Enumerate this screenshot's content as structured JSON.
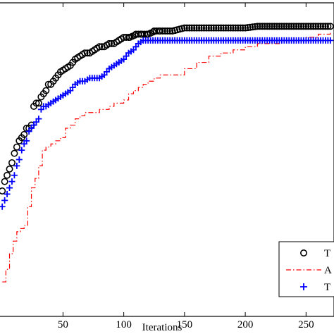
{
  "chart_data": {
    "type": "line",
    "xlabel": "Iterations",
    "ylabel": "",
    "title": "",
    "xlim": [
      -3,
      273
    ],
    "ylim": [
      0,
      1
    ],
    "xticks": [
      50,
      100,
      150,
      200,
      250
    ],
    "xtick_labels": [
      "50",
      "100",
      "150",
      "200",
      "250"
    ],
    "grid": false,
    "legend_position": "bottom-right",
    "legend": [
      {
        "label": "T",
        "marker": "circle",
        "color": "#000000"
      },
      {
        "label": "A",
        "marker": "dash-dot",
        "color": "#ff0000"
      },
      {
        "label": "T",
        "marker": "plus",
        "color": "#0000ff"
      }
    ],
    "series": [
      {
        "color": "#000000",
        "marker": "circle",
        "linestyle": "none",
        "x": [
          0,
          2,
          4,
          6,
          8,
          10,
          12,
          14,
          16,
          18,
          20,
          22,
          24,
          26,
          28,
          30,
          32,
          34,
          36,
          38,
          40,
          44,
          48,
          52,
          56,
          60,
          64,
          68,
          72,
          76,
          80,
          84,
          88,
          92,
          96,
          100,
          105,
          110,
          115,
          120,
          125,
          130,
          140,
          150,
          160,
          170,
          180,
          190,
          200,
          210,
          220,
          230,
          240,
          250,
          260,
          270
        ],
        "y": [
          0.4,
          0.43,
          0.45,
          0.47,
          0.49,
          0.52,
          0.54,
          0.56,
          0.57,
          0.58,
          0.6,
          0.6,
          0.61,
          0.67,
          0.68,
          0.68,
          0.7,
          0.71,
          0.72,
          0.74,
          0.74,
          0.76,
          0.78,
          0.79,
          0.8,
          0.82,
          0.83,
          0.84,
          0.84,
          0.85,
          0.86,
          0.86,
          0.87,
          0.87,
          0.88,
          0.89,
          0.89,
          0.9,
          0.9,
          0.9,
          0.91,
          0.91,
          0.91,
          0.92,
          0.92,
          0.92,
          0.92,
          0.92,
          0.92,
          0.925,
          0.925,
          0.925,
          0.925,
          0.925,
          0.925,
          0.925
        ]
      },
      {
        "color": "#ff0000",
        "marker": "dash-dot",
        "linestyle": "dashdot",
        "x": [
          0,
          3,
          6,
          9,
          12,
          15,
          18,
          21,
          24,
          27,
          30,
          33,
          36,
          40,
          44,
          48,
          52,
          56,
          60,
          64,
          68,
          72,
          76,
          80,
          84,
          88,
          92,
          96,
          100,
          104,
          108,
          112,
          116,
          120,
          125,
          130,
          140,
          150,
          160,
          170,
          180,
          190,
          200,
          210,
          220,
          230,
          240,
          250,
          260,
          270
        ],
        "y": [
          0.11,
          0.15,
          0.2,
          0.24,
          0.27,
          0.28,
          0.29,
          0.35,
          0.41,
          0.44,
          0.48,
          0.53,
          0.54,
          0.55,
          0.56,
          0.57,
          0.6,
          0.61,
          0.63,
          0.64,
          0.65,
          0.65,
          0.65,
          0.66,
          0.66,
          0.67,
          0.68,
          0.68,
          0.69,
          0.71,
          0.72,
          0.73,
          0.74,
          0.75,
          0.76,
          0.77,
          0.77,
          0.79,
          0.81,
          0.83,
          0.84,
          0.85,
          0.86,
          0.87,
          0.87,
          0.88,
          0.88,
          0.89,
          0.9,
          0.91
        ]
      },
      {
        "color": "#0000ff",
        "marker": "plus",
        "linestyle": "none",
        "x": [
          0,
          2,
          4,
          6,
          8,
          10,
          12,
          14,
          16,
          18,
          20,
          22,
          24,
          26,
          28,
          30,
          32,
          34,
          36,
          40,
          44,
          48,
          52,
          56,
          60,
          64,
          68,
          72,
          76,
          80,
          84,
          88,
          92,
          96,
          100,
          104,
          108,
          112,
          116,
          120,
          130,
          140,
          150,
          160,
          170,
          180,
          190,
          200,
          210,
          220,
          230,
          240,
          250,
          260,
          270
        ],
        "y": [
          0.35,
          0.37,
          0.39,
          0.41,
          0.43,
          0.45,
          0.48,
          0.5,
          0.53,
          0.55,
          0.56,
          0.59,
          0.6,
          0.61,
          0.62,
          0.63,
          0.66,
          0.67,
          0.67,
          0.68,
          0.69,
          0.7,
          0.71,
          0.72,
          0.74,
          0.75,
          0.75,
          0.76,
          0.76,
          0.76,
          0.77,
          0.79,
          0.8,
          0.81,
          0.82,
          0.84,
          0.85,
          0.87,
          0.88,
          0.88,
          0.88,
          0.88,
          0.88,
          0.88,
          0.88,
          0.88,
          0.88,
          0.88,
          0.88,
          0.88,
          0.88,
          0.88,
          0.88,
          0.88,
          0.88
        ]
      }
    ]
  }
}
